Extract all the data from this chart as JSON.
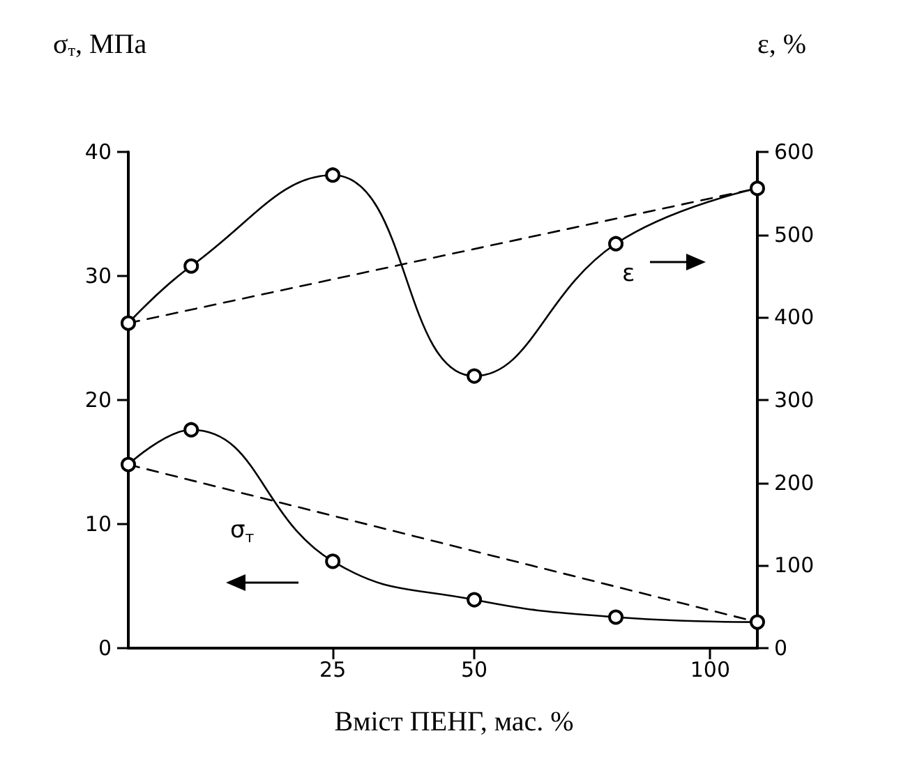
{
  "chart_data": {
    "type": "line",
    "xlabel": "Вміст ПЕНГ, мас. %",
    "ylabel": "σ$_{т}$, МПа",
    "y2label": "ε, %",
    "categories": [
      null,
      null,
      null,
      null,
      null,
      null,
      null,
      null,
      null,
      null,
      null,
      null,
      null,
      "25",
      null,
      null,
      null,
      null,
      null,
      null,
      null,
      null,
      "50",
      null,
      null,
      null,
      null,
      null,
      null,
      null,
      null,
      null,
      null,
      null,
      null,
      null,
      null,
      "100",
      null,
      null,
      null
    ],
    "series": [
      {
        "color": "#000000",
        "marker": "circle",
        "line_style": "solid",
        "values": [
          14.8,
          null,
          null,
          null,
          17.6,
          null,
          null,
          null,
          null,
          null,
          null,
          null,
          null,
          7.0,
          null,
          null,
          null,
          null,
          null,
          null,
          null,
          null,
          3.9,
          null,
          null,
          null,
          null,
          null,
          null,
          null,
          null,
          2.5,
          null,
          null,
          null,
          null,
          null,
          null,
          null,
          null,
          2.1
        ]
      },
      {
        "color": "#000000",
        "line_style": "dashed",
        "values": [
          14.8,
          null,
          null,
          null,
          null,
          null,
          null,
          null,
          null,
          null,
          null,
          null,
          null,
          null,
          null,
          null,
          null,
          null,
          null,
          null,
          null,
          null,
          null,
          null,
          null,
          null,
          null,
          null,
          null,
          null,
          null,
          null,
          null,
          null,
          null,
          null,
          null,
          null,
          null,
          null,
          2.1
        ]
      },
      {
        "color": "#000000",
        "marker": "circle",
        "line_style": "solid",
        "axis": "y2",
        "values": [
          393,
          null,
          null,
          null,
          462,
          null,
          null,
          null,
          null,
          null,
          null,
          null,
          null,
          572,
          null,
          null,
          null,
          null,
          null,
          null,
          null,
          null,
          329,
          null,
          null,
          null,
          null,
          null,
          null,
          null,
          null,
          489,
          null,
          null,
          null,
          null,
          null,
          null,
          null,
          null,
          556
        ]
      },
      {
        "color": "#000000",
        "line_style": "dashed",
        "axis": "y2",
        "values": [
          393,
          null,
          null,
          null,
          null,
          null,
          null,
          null,
          null,
          null,
          null,
          null,
          null,
          null,
          null,
          null,
          null,
          null,
          null,
          null,
          null,
          null,
          null,
          null,
          null,
          null,
          null,
          null,
          null,
          null,
          null,
          null,
          null,
          null,
          null,
          null,
          null,
          null,
          null,
          null,
          556
        ]
      }
    ],
    "ylim": [
      0,
      40
    ],
    "yticks": [
      0,
      10,
      20,
      30,
      40
    ],
    "y2lim": [
      0,
      600
    ],
    "y2ticks": [
      0,
      100,
      200,
      300,
      400,
      500,
      600
    ],
    "annotations": [
      "σ$_{т}$",
      "ε"
    ],
    "grid": false
  }
}
